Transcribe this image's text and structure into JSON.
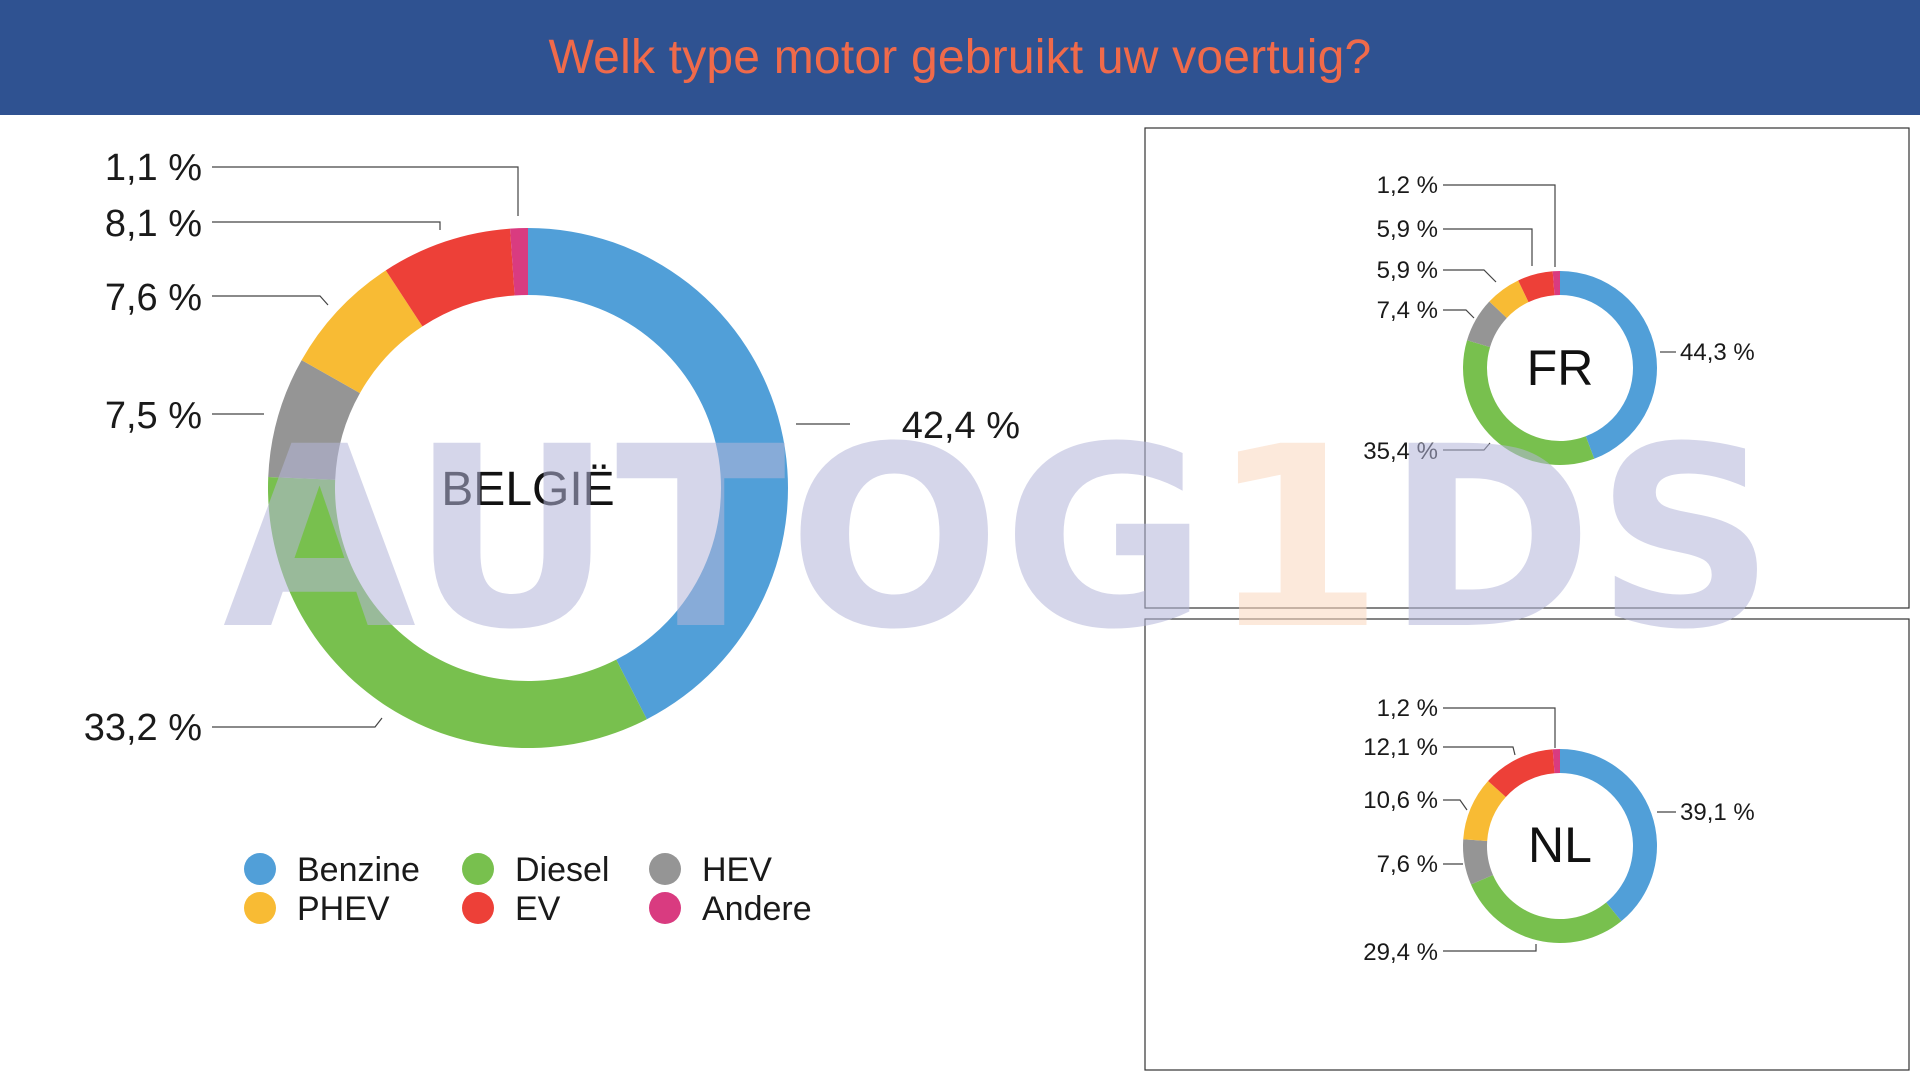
{
  "header": {
    "title": "Welk type motor gebruikt uw voertuig?"
  },
  "colors": {
    "header_bg": "#2f5291",
    "title": "#f06a4a",
    "Benzine": "#519fd8",
    "Diesel": "#78c04e",
    "HEV": "#959595",
    "PHEV": "#f8bb34",
    "EV": "#ed4038",
    "Andere": "#d93b80"
  },
  "watermark": {
    "text_a": "AUTOG",
    "text_b": "1",
    "text_c": "DS"
  },
  "legend": [
    {
      "label": "Benzine",
      "color": "#519fd8"
    },
    {
      "label": "Diesel",
      "color": "#78c04e"
    },
    {
      "label": "HEV",
      "color": "#959595"
    },
    {
      "label": "PHEV",
      "color": "#f8bb34"
    },
    {
      "label": "EV",
      "color": "#ed4038"
    },
    {
      "label": "Andere",
      "color": "#d93b80"
    }
  ],
  "chart_data": [
    {
      "type": "pie",
      "title": "BELGIË",
      "categories": [
        "Benzine",
        "Diesel",
        "HEV",
        "PHEV",
        "EV",
        "Andere"
      ],
      "values": [
        42.4,
        33.2,
        7.5,
        7.6,
        8.1,
        1.1
      ],
      "labels": [
        "42,4 %",
        "33,2 %",
        "7,5 %",
        "7,6 %",
        "8,1 %",
        "1,1 %"
      ]
    },
    {
      "type": "pie",
      "title": "FR",
      "categories": [
        "Benzine",
        "Diesel",
        "HEV",
        "PHEV",
        "EV",
        "Andere"
      ],
      "values": [
        44.3,
        35.4,
        7.4,
        5.9,
        5.9,
        1.2
      ],
      "labels": [
        "44,3 %",
        "35,4 %",
        "7,4 %",
        "5,9 %",
        "5,9 %",
        "1,2 %"
      ]
    },
    {
      "type": "pie",
      "title": "NL",
      "categories": [
        "Benzine",
        "Diesel",
        "HEV",
        "PHEV",
        "EV",
        "Andere"
      ],
      "values": [
        39.1,
        29.4,
        7.6,
        10.6,
        12.1,
        1.2
      ],
      "labels": [
        "39,1 %",
        "29,4 %",
        "7,6 %",
        "10,6 %",
        "12,1 %",
        "1,2 %"
      ]
    }
  ]
}
